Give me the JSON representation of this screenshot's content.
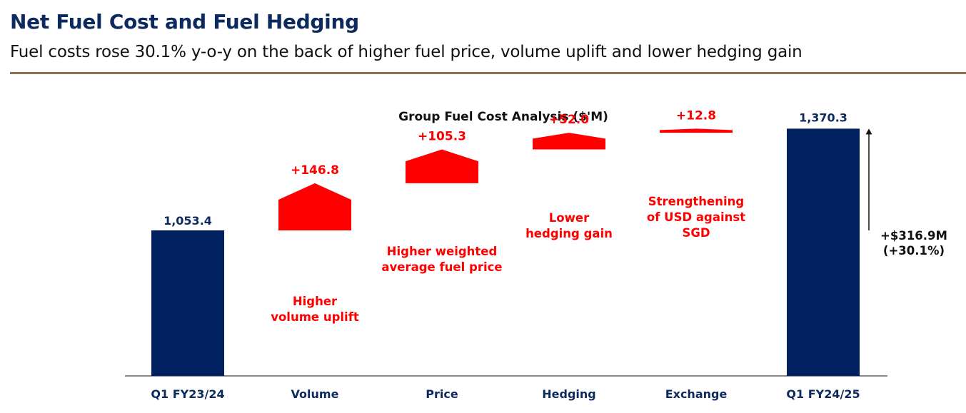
{
  "header": {
    "title": "Net Fuel Cost and Fuel Hedging",
    "subtitle": "Fuel costs rose 30.1% y-o-y on the back of higher fuel price, volume uplift and lower hedging gain"
  },
  "colors": {
    "navy": "#002060",
    "red": "#ff0000",
    "title_blue": "#0d2a5e",
    "rule_gold": "#8a7550"
  },
  "chart_data": {
    "type": "waterfall",
    "title": "Group Fuel Cost Analysis ($'M)",
    "categories": [
      "Q1 FY23/24",
      "Volume",
      "Price",
      "Hedging",
      "Exchange",
      "Q1 FY24/25"
    ],
    "start": {
      "label": "Q1 FY23/24",
      "value": 1053.4,
      "value_label": "1,053.4"
    },
    "steps": [
      {
        "category": "Volume",
        "delta": 146.8,
        "delta_label": "+146.8",
        "annotation": [
          "Higher",
          "volume uplift"
        ]
      },
      {
        "category": "Price",
        "delta": 105.3,
        "delta_label": "+105.3",
        "annotation": [
          "Higher weighted",
          "average fuel price"
        ]
      },
      {
        "category": "Hedging",
        "delta": 52.0,
        "delta_label": "+52.0",
        "annotation": [
          "Lower",
          "hedging gain"
        ]
      },
      {
        "category": "Exchange",
        "delta": 12.8,
        "delta_label": "+12.8",
        "annotation": [
          "Strengthening",
          "of USD against",
          "SGD"
        ]
      }
    ],
    "end": {
      "label": "Q1 FY24/25",
      "value": 1370.3,
      "value_label": "1,370.3"
    },
    "total_change": {
      "label": "+$316.9M",
      "percent_label": "(+30.1%)"
    }
  }
}
